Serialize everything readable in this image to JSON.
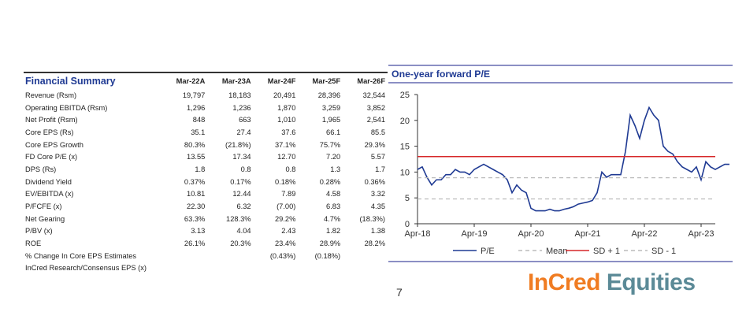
{
  "table": {
    "title": "Financial Summary",
    "columns": [
      "Mar-22A",
      "Mar-23A",
      "Mar-24F",
      "Mar-25F",
      "Mar-26F"
    ],
    "rows": [
      {
        "label": "Revenue (Rsm)",
        "values": [
          "19,797",
          "18,183",
          "20,491",
          "28,396",
          "32,544"
        ]
      },
      {
        "label": "Operating EBITDA (Rsm)",
        "values": [
          "1,296",
          "1,236",
          "1,870",
          "3,259",
          "3,852"
        ]
      },
      {
        "label": "Net Profit (Rsm)",
        "values": [
          "848",
          "663",
          "1,010",
          "1,965",
          "2,541"
        ]
      },
      {
        "label": "Core EPS (Rs)",
        "values": [
          "35.1",
          "27.4",
          "37.6",
          "66.1",
          "85.5"
        ]
      },
      {
        "label": "Core EPS Growth",
        "values": [
          "80.3%",
          "(21.8%)",
          "37.1%",
          "75.7%",
          "29.3%"
        ]
      },
      {
        "label": "FD Core P/E (x)",
        "values": [
          "13.55",
          "17.34",
          "12.70",
          "7.20",
          "5.57"
        ]
      },
      {
        "label": "DPS (Rs)",
        "values": [
          "1.8",
          "0.8",
          "0.8",
          "1.3",
          "1.7"
        ]
      },
      {
        "label": "Dividend Yield",
        "values": [
          "0.37%",
          "0.17%",
          "0.18%",
          "0.28%",
          "0.36%"
        ]
      },
      {
        "label": "EV/EBITDA (x)",
        "values": [
          "10.81",
          "12.44",
          "7.89",
          "4.58",
          "3.32"
        ]
      },
      {
        "label": "P/FCFE (x)",
        "values": [
          "22.30",
          "6.32",
          "(7.00)",
          "6.83",
          "4.35"
        ]
      },
      {
        "label": "Net Gearing",
        "values": [
          "63.3%",
          "128.3%",
          "29.2%",
          "4.7%",
          "(18.3%)"
        ]
      },
      {
        "label": "P/BV (x)",
        "values": [
          "3.13",
          "4.04",
          "2.43",
          "1.82",
          "1.38"
        ]
      },
      {
        "label": "ROE",
        "values": [
          "26.1%",
          "20.3%",
          "23.4%",
          "28.9%",
          "28.2%"
        ]
      },
      {
        "label": "% Change In Core EPS Estimates",
        "values": [
          "",
          "",
          "(0.43%)",
          "(0.18%)",
          ""
        ]
      },
      {
        "label": "InCred Research/Consensus EPS (x)",
        "values": [
          "",
          "",
          "",
          "",
          ""
        ]
      }
    ]
  },
  "chart_data": {
    "type": "line",
    "title": "One-year forward P/E",
    "ylim": [
      0,
      25
    ],
    "yticks": [
      0,
      5,
      10,
      15,
      20,
      25
    ],
    "xticks": [
      "Apr-18",
      "Apr-19",
      "Apr-20",
      "Apr-21",
      "Apr-22",
      "Apr-23"
    ],
    "x_start": "Apr-18",
    "x_step": "month",
    "legend_position": "bottom",
    "series": [
      {
        "name": "P/E",
        "color": "#1f3a93",
        "style": "solid",
        "values": [
          10.5,
          11,
          9,
          7.5,
          8.5,
          8.5,
          9.5,
          9.5,
          10.5,
          10,
          10,
          9.5,
          10.5,
          11,
          11.5,
          11,
          10.5,
          10,
          9.5,
          8.5,
          6,
          7.5,
          6.5,
          6,
          3,
          2.5,
          2.5,
          2.5,
          2.8,
          2.5,
          2.5,
          2.8,
          3,
          3.3,
          3.8,
          4,
          4.2,
          4.5,
          6,
          10,
          9,
          9.5,
          9.5,
          9.5,
          14,
          21,
          19,
          16.5,
          20,
          22.5,
          21,
          20,
          15,
          14,
          13.5,
          12,
          11,
          10.5,
          10,
          11,
          8.5,
          12,
          11,
          10.5,
          11,
          11.5,
          11.5
        ]
      },
      {
        "name": "Mean",
        "color": "#bbbbbb",
        "style": "dashed",
        "value": 8.9
      },
      {
        "name": "SD + 1",
        "color": "#d62728",
        "style": "solid",
        "value": 13
      },
      {
        "name": "SD - 1",
        "color": "#bbbbbb",
        "style": "dashed",
        "value": 4.8
      }
    ]
  },
  "page_number": "7",
  "logo": {
    "part1": "InCred",
    "part2": "Equities"
  }
}
